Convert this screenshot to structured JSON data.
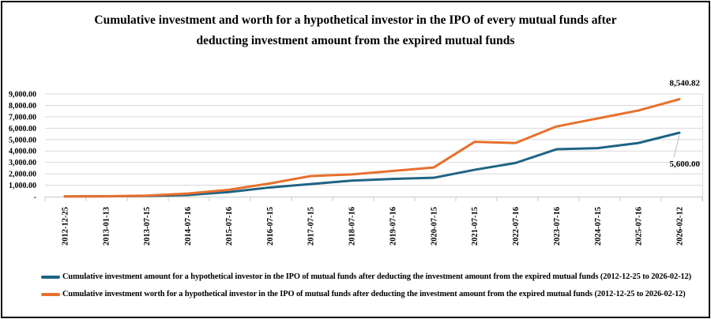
{
  "title": {
    "line1": "Cumulative investment and worth for a hypothetical investor in the IPO of every mutual funds after",
    "line2": "deducting investment amount from the expired mutual funds"
  },
  "colors": {
    "investment": "#1F6484",
    "worth": "#E8702C",
    "gridline": "#D9D9D9",
    "axis": "#C9C9C9",
    "leader": "#BFBFBF",
    "text": "#000000",
    "frame": "#0A0A0A",
    "background": "#FFFFFF"
  },
  "chart_data": {
    "type": "line",
    "title": "Cumulative investment and worth for a hypothetical investor in the IPO of every mutual funds after deducting investment amount from the expired mutual funds",
    "categories": [
      "2012-12-25",
      "2013-01-13",
      "2013-07-15",
      "2014-07-16",
      "2015-07-16",
      "2016-07-15",
      "2017-07-15",
      "2018-07-16",
      "2019-07-16",
      "2020-07-15",
      "2021-07-15",
      "2022-07-16",
      "2023-07-16",
      "2024-07-15",
      "2025-07-16",
      "2026-02-12"
    ],
    "series": [
      {
        "name": "Cumulative investment amount for a hypothetical investor in the IPO of mutual funds after deducting the investment amount from the expired mutual funds (2012-12-25 to 2026-02-12)",
        "color": "#1F6484",
        "values": [
          15,
          30,
          60,
          140,
          400,
          800,
          1100,
          1400,
          1550,
          1650,
          2350,
          2950,
          4150,
          4250,
          4700,
          5600
        ]
      },
      {
        "name": "Cumulative investment worth for a hypothetical investor in the IPO of mutual funds after deducting the investment amount from the expired mutual funds (2012-12-25 to 2026-02-12)",
        "color": "#E8702C",
        "values": [
          15,
          30,
          90,
          270,
          600,
          1150,
          1800,
          1950,
          2250,
          2550,
          4800,
          4700,
          6150,
          6850,
          7550,
          8540.82
        ]
      }
    ],
    "ylim": [
      0,
      9000
    ],
    "ytick_step": 1000,
    "ytick_labels": [
      "-",
      "1,000.00",
      "2,000.00",
      "3,000.00",
      "4,000.00",
      "5,000.00",
      "6,000.00",
      "7,000.00",
      "8,000.00",
      "9,000.00"
    ],
    "grid": true,
    "legend_position": "bottom-left",
    "annotations": [
      {
        "text": "8,540.82",
        "series": 1,
        "point_index": 15,
        "placement": "above",
        "leader": false
      },
      {
        "text": "5,600.00",
        "series": 0,
        "point_index": 15,
        "placement": "below",
        "leader": true
      }
    ]
  }
}
